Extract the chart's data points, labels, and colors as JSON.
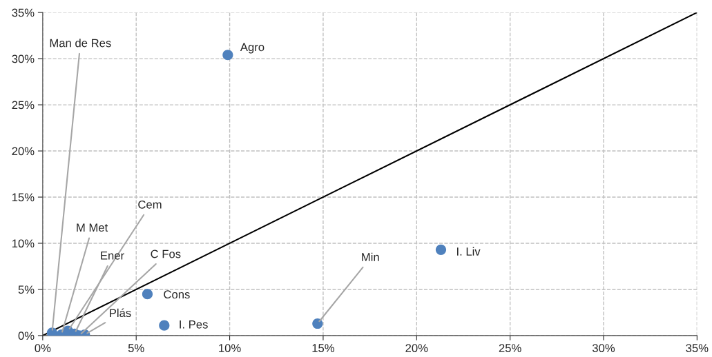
{
  "chart_data": {
    "type": "scatter",
    "grid": true,
    "legend": false,
    "marker": "circle",
    "xlim": [
      0,
      35
    ],
    "ylim": [
      0,
      35
    ],
    "xticks": [
      {
        "value": 0,
        "label": "0%"
      },
      {
        "value": 5,
        "label": "5%"
      },
      {
        "value": 10,
        "label": "10%"
      },
      {
        "value": 15,
        "label": "15%"
      },
      {
        "value": 20,
        "label": "20%"
      },
      {
        "value": 25,
        "label": "25%"
      },
      {
        "value": 30,
        "label": "30%"
      },
      {
        "value": 35,
        "label": "35%"
      }
    ],
    "yticks": [
      {
        "value": 0,
        "label": "0%"
      },
      {
        "value": 5,
        "label": "5%"
      },
      {
        "value": 10,
        "label": "10%"
      },
      {
        "value": 15,
        "label": "15%"
      },
      {
        "value": 20,
        "label": "20%"
      },
      {
        "value": 25,
        "label": "25%"
      },
      {
        "value": 30,
        "label": "30%"
      },
      {
        "value": 35,
        "label": "35%"
      }
    ],
    "series": [
      {
        "type": "line",
        "color": "#000000",
        "x": [
          0,
          35
        ],
        "values": [
          0,
          35
        ],
        "marker": "none"
      },
      {
        "color": "#4f81bd",
        "x": [
          9.9,
          21.3,
          14.7,
          5.6,
          6.5,
          0.5,
          1.0,
          1.35,
          1.7,
          1.95,
          2.25
        ],
        "values": [
          30.4,
          9.3,
          1.3,
          4.5,
          1.1,
          0.3,
          0.1,
          0.5,
          0.2,
          0.0,
          0.1
        ]
      }
    ],
    "annotations": [
      {
        "text": "Agro",
        "x": 9.9,
        "y": 30.4
      },
      {
        "text": "I. Liv",
        "x": 21.3,
        "y": 9.3
      },
      {
        "text": "Min",
        "x": 14.7,
        "y": 1.3
      },
      {
        "text": "Cons",
        "x": 5.6,
        "y": 4.5
      },
      {
        "text": "I. Pes",
        "x": 6.5,
        "y": 1.1
      },
      {
        "text": "Man de Res",
        "x": 0.5,
        "y": 0.3
      },
      {
        "text": "M Met",
        "x": 1.0,
        "y": 0.1
      },
      {
        "text": "Cem",
        "x": 1.35,
        "y": 0.5
      },
      {
        "text": "Ener",
        "x": 1.7,
        "y": 0.2
      },
      {
        "text": "C Fos",
        "x": 1.95,
        "y": 0.0
      },
      {
        "text": "Plás",
        "x": 2.25,
        "y": 0.1
      }
    ]
  }
}
